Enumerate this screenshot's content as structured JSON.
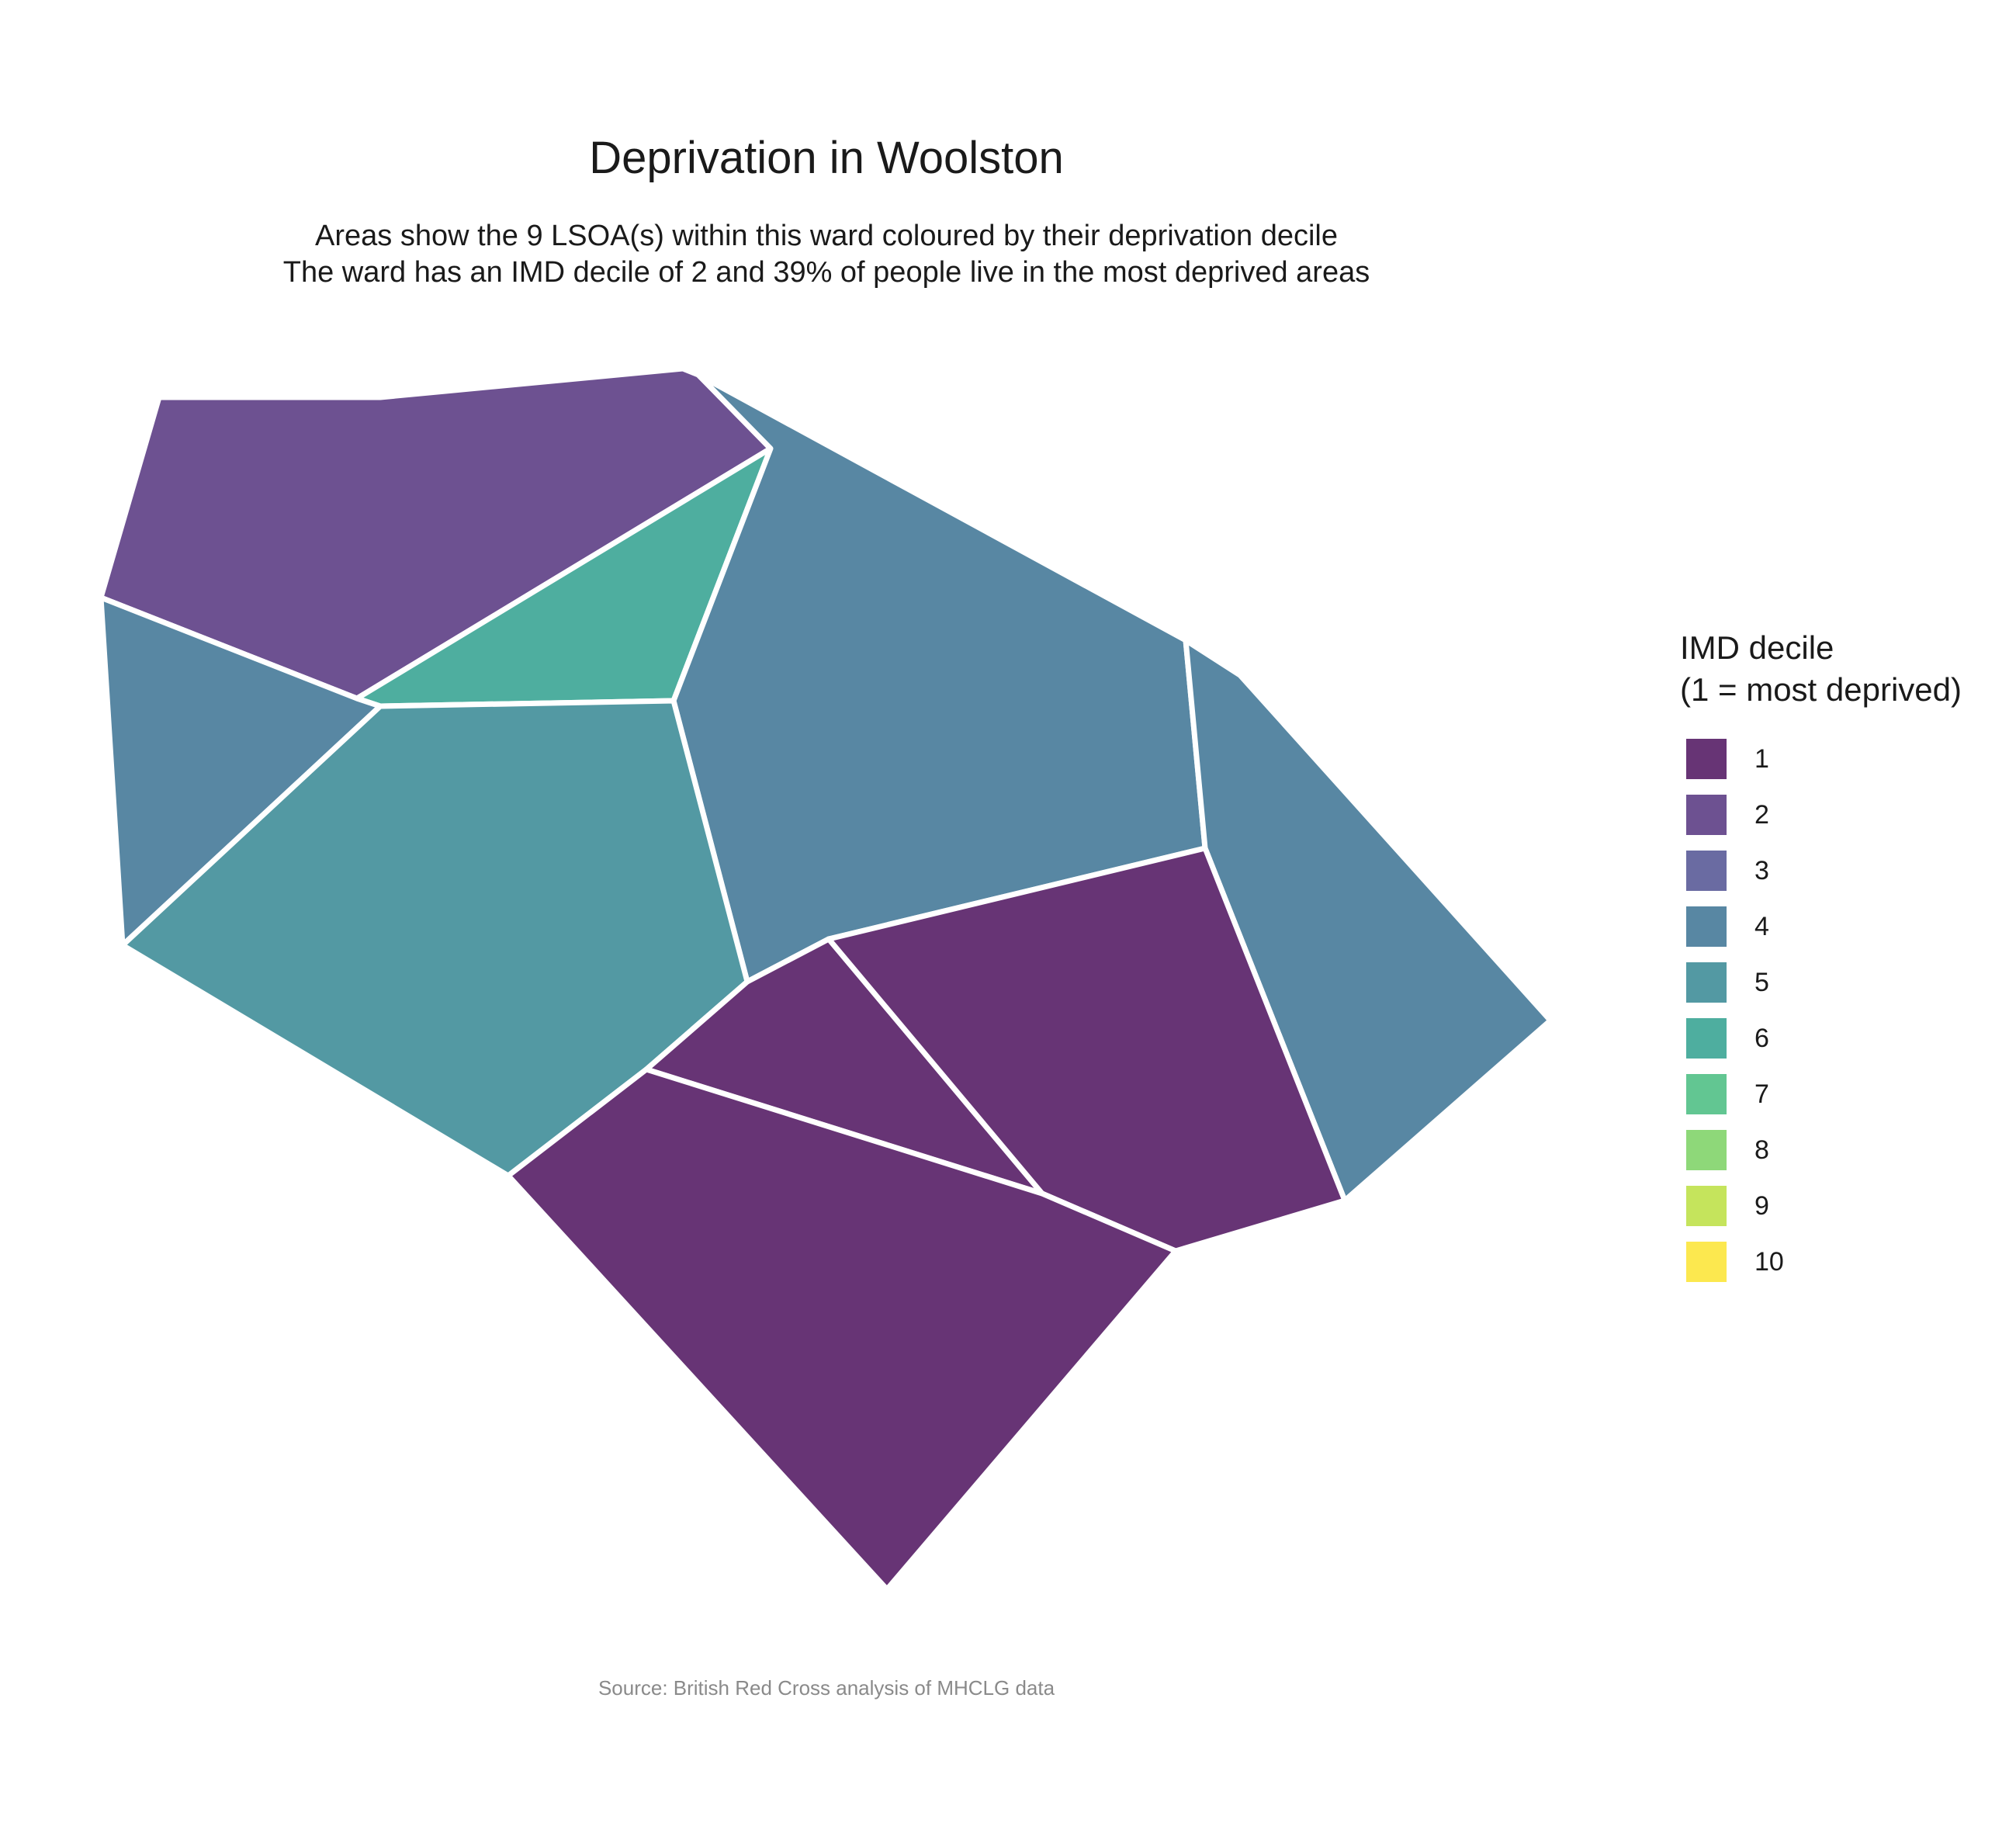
{
  "title": "Deprivation in Woolston",
  "subtitle": {
    "line1": "Areas show the 9 LSOA(s) within this ward coloured by their deprivation decile",
    "line2": "The ward has an IMD decile of 2 and 39% of people live in the most deprived areas"
  },
  "caption": "Source: British Red Cross analysis of MHCLG data",
  "legend": {
    "title_line1": "IMD decile",
    "title_line2": "(1 = most deprived)",
    "items": [
      {
        "label": "1",
        "color": "#673475"
      },
      {
        "label": "2",
        "color": "#6d5191"
      },
      {
        "label": "3",
        "color": "#6a6ba2"
      },
      {
        "label": "4",
        "color": "#5887a3"
      },
      {
        "label": "5",
        "color": "#5399a3"
      },
      {
        "label": "6",
        "color": "#4eae9f"
      },
      {
        "label": "7",
        "color": "#62c692"
      },
      {
        "label": "8",
        "color": "#8ed879"
      },
      {
        "label": "9",
        "color": "#c5e45c"
      },
      {
        "label": "10",
        "color": "#fce84f"
      }
    ]
  },
  "lsoas": [
    {
      "name": "north-west",
      "decile": 2
    },
    {
      "name": "north-triangle",
      "decile": 6
    },
    {
      "name": "north-central",
      "decile": 4
    },
    {
      "name": "west",
      "decile": 4
    },
    {
      "name": "central-west",
      "decile": 5
    },
    {
      "name": "east",
      "decile": 4
    },
    {
      "name": "central-south-small",
      "decile": 1
    },
    {
      "name": "south-east",
      "decile": 1
    },
    {
      "name": "south",
      "decile": 1
    }
  ]
}
